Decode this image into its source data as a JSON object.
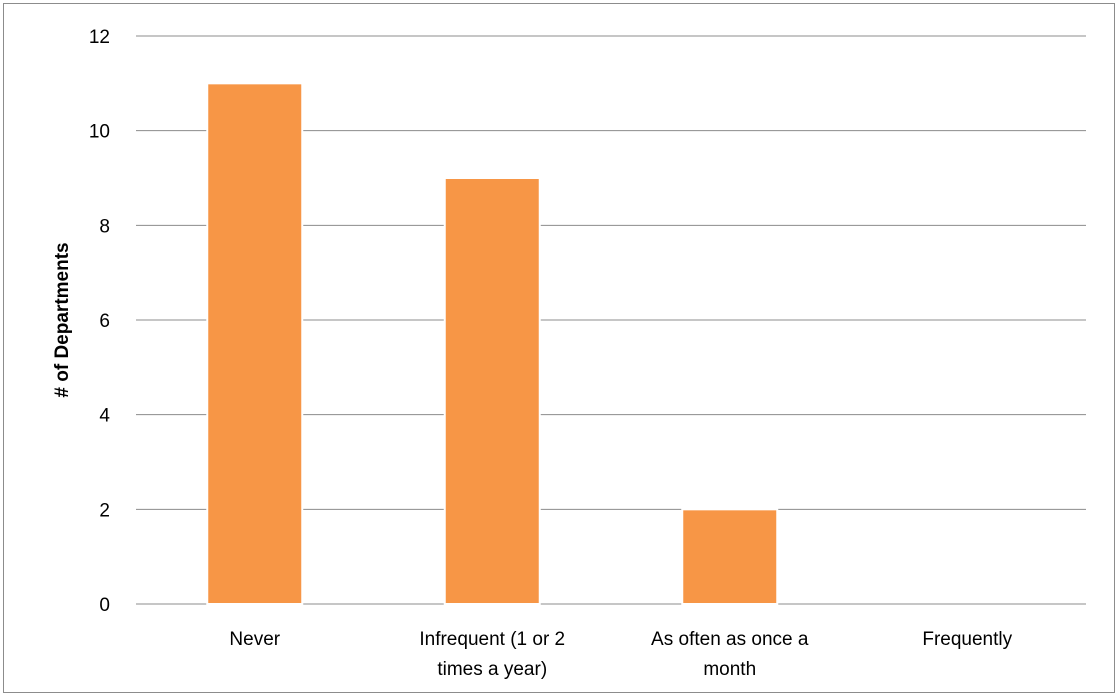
{
  "chart_data": {
    "type": "bar",
    "categories": [
      [
        "Never"
      ],
      [
        "Infrequent (1 or 2",
        "times a year)"
      ],
      [
        "As often as once a",
        "month"
      ],
      [
        "Frequently"
      ]
    ],
    "values": [
      11,
      9,
      2,
      0
    ],
    "title": "",
    "xlabel": "",
    "ylabel": "# of Departments",
    "ylim": [
      0,
      12
    ],
    "yticks": [
      0,
      2,
      4,
      6,
      8,
      10,
      12
    ],
    "grid": true,
    "legend": "none",
    "colors": {
      "bar": "#F79646",
      "bar_edge": "#ffffff",
      "grid": "#8c8c8c"
    }
  }
}
